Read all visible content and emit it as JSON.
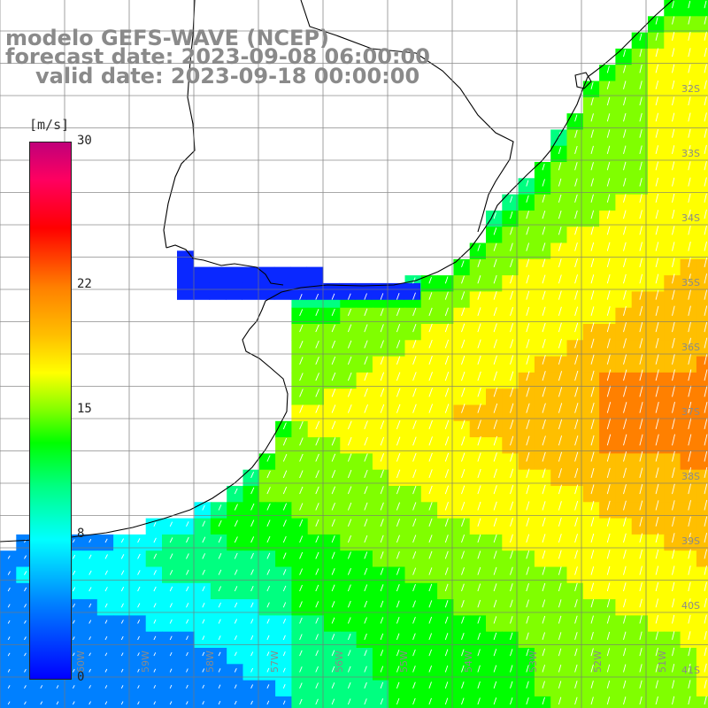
{
  "title": {
    "line1": "modelo GEFS-WAVE (NCEP)",
    "line2": "forecast date: 2023-09-08 06:00:00",
    "line3": "valid date: 2023-09-18 00:00:00"
  },
  "colorbar": {
    "unit": "[m/s]",
    "ticks": [
      {
        "label": "30",
        "value": 30
      },
      {
        "label": "22",
        "value": 22
      },
      {
        "label": "15",
        "value": 15
      },
      {
        "label": "8",
        "value": 8
      },
      {
        "label": "0",
        "value": 0
      }
    ],
    "min": 0,
    "max": 30,
    "colors": [
      "#0000ff",
      "#0080ff",
      "#00ffff",
      "#00ff80",
      "#00ff00",
      "#80ff00",
      "#ffff00",
      "#ffbf00",
      "#ff8000",
      "#ff0000",
      "#ff0060",
      "#c0007a"
    ]
  },
  "map": {
    "lon_labels": [
      "60W",
      "59W",
      "58W",
      "57W",
      "56W",
      "55W",
      "54W",
      "53W",
      "52W",
      "51W"
    ],
    "lat_labels": [
      "32S",
      "33S",
      "34S",
      "35S",
      "36S",
      "37S",
      "38S",
      "39S",
      "40S",
      "41S"
    ],
    "lon_range": [
      -60.5,
      -49.5
    ],
    "lat_range": [
      -41.2,
      -30.5
    ],
    "land_color": "#ffffff",
    "coast_color": "#000000",
    "arrow_color": "#ffffff"
  }
}
